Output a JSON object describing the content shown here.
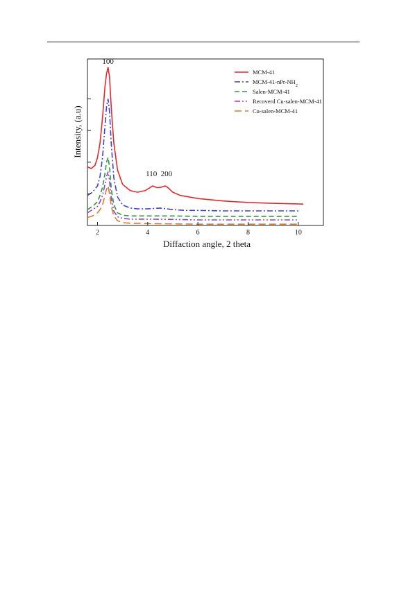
{
  "chart_data": {
    "type": "line",
    "xlabel": "Diffaction angle, 2 theta",
    "ylabel": "Intensity, (a.u)",
    "xlim": [
      1.6,
      11.0
    ],
    "ylim": [
      0,
      100
    ],
    "x_ticks": [
      2,
      4,
      6,
      8,
      10
    ],
    "x_tick_labels": [
      "2",
      "4",
      "6",
      "8",
      "10"
    ],
    "y_ticks": [
      20,
      40,
      60,
      80
    ],
    "grid": false,
    "legend_position": "top-right",
    "peak_labels": [
      {
        "text": "100",
        "x": 2.42,
        "y": 100
      },
      {
        "text": "110",
        "x": 4.15,
        "y": 29
      },
      {
        "text": "200",
        "x": 4.75,
        "y": 29
      }
    ],
    "series": [
      {
        "name": "MCM-41",
        "color": "#e8272b",
        "dash": "solid",
        "x": [
          1.6,
          1.75,
          1.9,
          2.0,
          2.1,
          2.2,
          2.3,
          2.36,
          2.42,
          2.48,
          2.55,
          2.65,
          2.8,
          3.0,
          3.3,
          3.6,
          3.9,
          4.1,
          4.2,
          4.35,
          4.5,
          4.7,
          4.8,
          5.0,
          5.3,
          6.0,
          7.0,
          8.0,
          9.0,
          10.2
        ],
        "y": [
          37,
          36,
          38,
          43,
          52,
          68,
          88,
          96,
          100,
          94,
          74,
          52,
          35,
          26,
          22,
          21,
          22,
          24,
          25,
          24,
          24,
          25,
          24,
          21,
          19,
          17,
          15.5,
          14.5,
          14,
          13.5
        ]
      },
      {
        "name": "MCM-41-nPr-NH",
        "name_subscript": "2",
        "color": "#3f3fd8",
        "dash": "dashdot",
        "x": [
          1.6,
          1.8,
          2.0,
          2.1,
          2.2,
          2.3,
          2.36,
          2.42,
          2.48,
          2.55,
          2.65,
          2.8,
          3.0,
          3.3,
          3.6,
          4.0,
          4.5,
          5.0,
          5.5,
          6.0,
          7.0,
          8.0,
          9.0,
          10.0
        ],
        "y": [
          19,
          21,
          25,
          31,
          43,
          63,
          75,
          80,
          72,
          51,
          30,
          18,
          13,
          11,
          10.5,
          10.5,
          11,
          10,
          9.5,
          9.5,
          9.2,
          9.2,
          9.2,
          9.2
        ]
      },
      {
        "name": "Salen-MCM-41",
        "color": "#2a9a3a",
        "dash": "dashed",
        "x": [
          1.6,
          1.8,
          2.0,
          2.1,
          2.2,
          2.3,
          2.36,
          2.42,
          2.48,
          2.55,
          2.65,
          2.8,
          3.0,
          3.3,
          4.0,
          5.0,
          6.0,
          7.0,
          8.0,
          9.0,
          10.0
        ],
        "y": [
          10,
          12,
          15,
          19,
          24,
          33,
          40,
          43,
          37,
          23,
          13,
          8,
          6.5,
          6,
          6,
          6,
          5.8,
          5.8,
          5.8,
          5.8,
          5.8
        ]
      },
      {
        "name": "Recoverd Cu-salen-MCM-41",
        "color": "#9a3ad8",
        "dash": "dashdotdot",
        "x": [
          1.6,
          1.8,
          2.0,
          2.1,
          2.2,
          2.3,
          2.36,
          2.42,
          2.48,
          2.55,
          2.65,
          2.8,
          3.0,
          3.3,
          4.0,
          5.0,
          6.0,
          7.0,
          8.0,
          9.0,
          10.0
        ],
        "y": [
          8,
          10,
          12,
          15,
          19,
          26,
          31,
          34,
          28,
          17,
          9,
          5.5,
          4.5,
          4,
          4,
          3.8,
          3.5,
          3.5,
          3.5,
          3.5,
          3.5
        ]
      },
      {
        "name": "Cu-salen-MCM-41",
        "color": "#d97a2a",
        "dash": "longdash",
        "x": [
          1.6,
          1.8,
          2.0,
          2.1,
          2.2,
          2.3,
          2.36,
          2.42,
          2.48,
          2.55,
          2.65,
          2.8,
          3.0,
          3.3,
          4.0,
          5.0,
          6.0,
          7.0,
          8.0,
          9.0,
          10.0
        ],
        "y": [
          5,
          6,
          8,
          10,
          13,
          19,
          23,
          25,
          20,
          12,
          6,
          3,
          1.8,
          1.4,
          1.2,
          1,
          0.8,
          0.8,
          0.8,
          0.8,
          0.8
        ]
      }
    ]
  }
}
